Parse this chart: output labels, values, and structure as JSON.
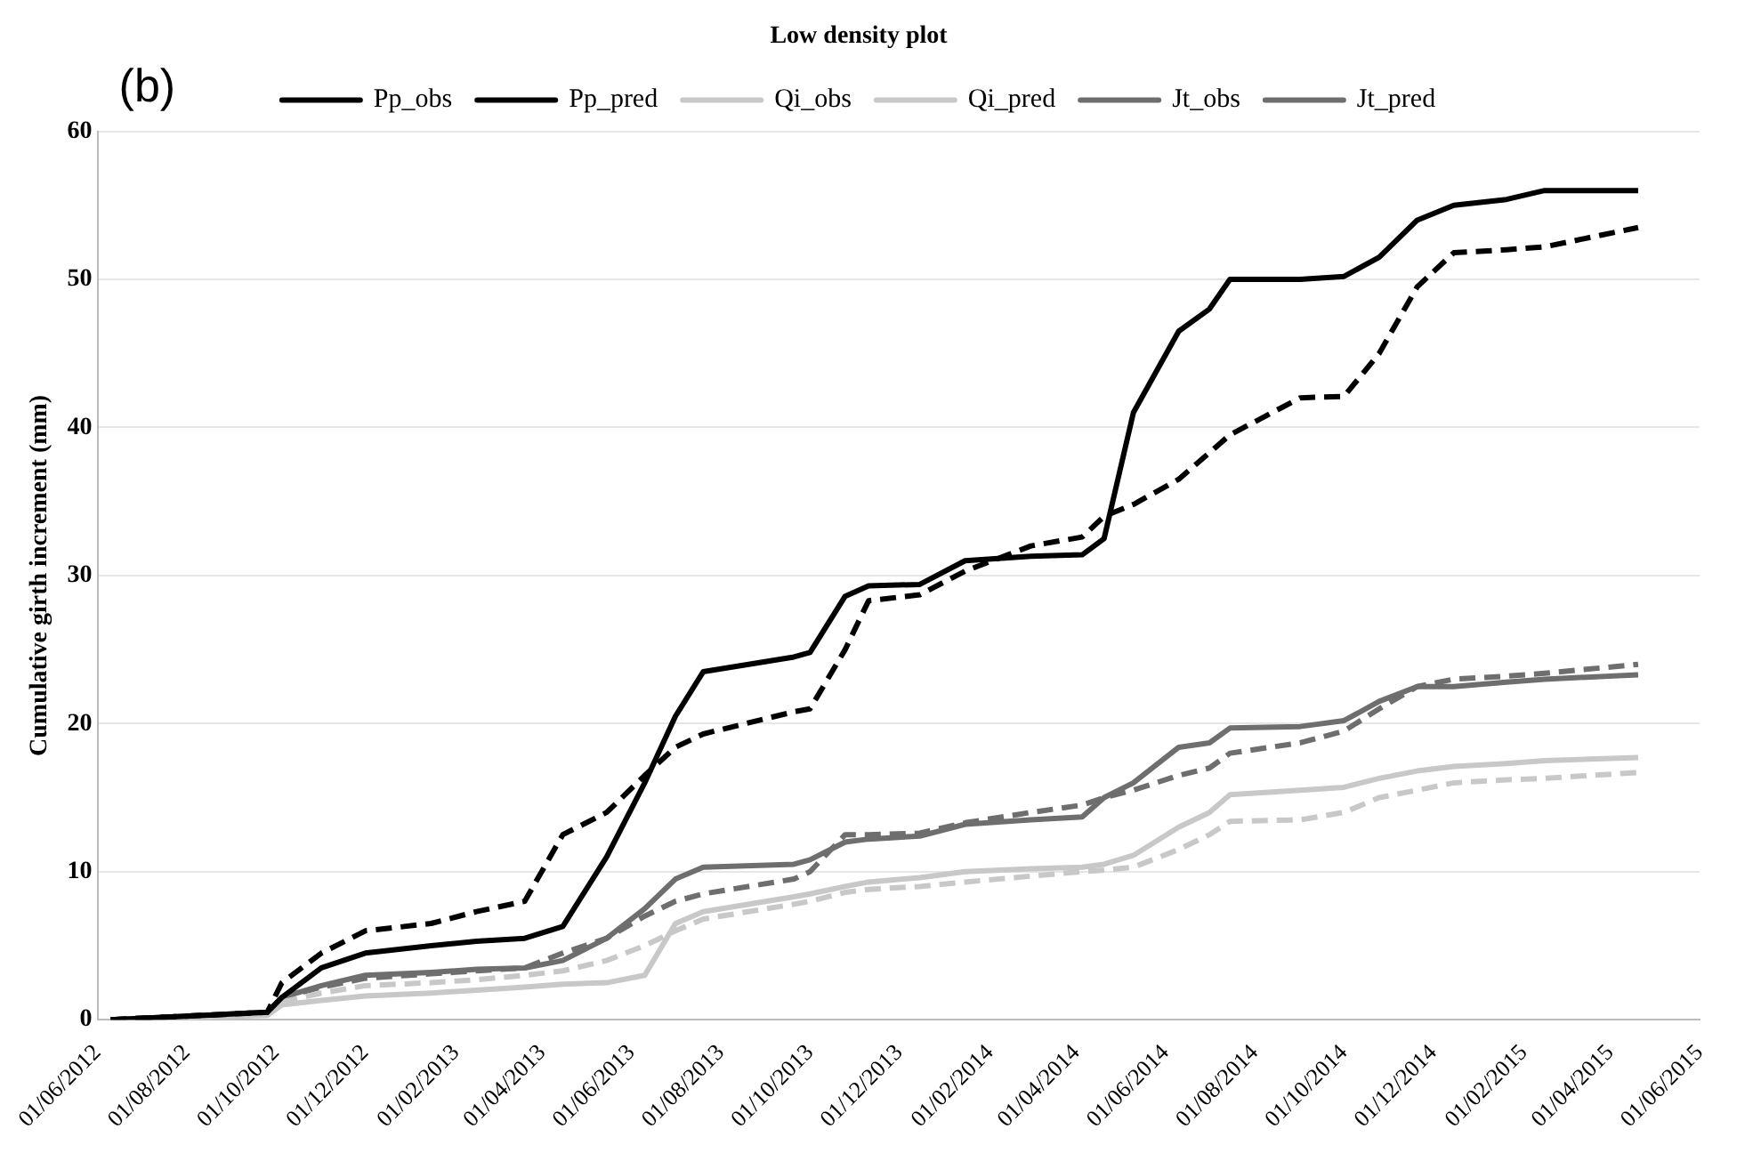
{
  "chart_data": {
    "type": "line",
    "title": "Low density plot",
    "ylabel": "Cumulative girth increment (mm)",
    "annotations": [
      "(b)"
    ],
    "x": [
      "2012-06-10",
      "2012-09-25",
      "2012-10-05",
      "2012-11-01",
      "2012-12-01",
      "2013-01-15",
      "2013-02-15",
      "2013-03-20",
      "2013-04-15",
      "2013-05-15",
      "2013-06-10",
      "2013-07-01",
      "2013-07-20",
      "2013-09-20",
      "2013-10-01",
      "2013-10-25",
      "2013-11-10",
      "2013-12-15",
      "2014-01-15",
      "2014-03-01",
      "2014-04-05",
      "2014-04-20",
      "2014-05-10",
      "2014-06-10",
      "2014-07-01",
      "2014-07-15",
      "2014-09-01",
      "2014-10-01",
      "2014-10-25",
      "2014-11-20",
      "2014-12-15",
      "2015-01-20",
      "2015-02-15",
      "2015-04-20"
    ],
    "series": [
      {
        "name": "Pp_obs",
        "color": "#000000",
        "line_style": "solid",
        "values": [
          0,
          0.5,
          1.5,
          3.5,
          4.5,
          5,
          5.3,
          5.5,
          6.3,
          11,
          16,
          20.5,
          23.5,
          24.5,
          24.8,
          28.6,
          29.3,
          29.4,
          31,
          31.3,
          31.4,
          32.5,
          41,
          46.5,
          48,
          50,
          50,
          50.2,
          51.5,
          54,
          55,
          55.4,
          56,
          56
        ]
      },
      {
        "name": "Pp_pred",
        "color": "#000000",
        "line_style": "dashed",
        "values": [
          0,
          0.5,
          2.5,
          4.5,
          6,
          6.5,
          7.3,
          8,
          12.5,
          14,
          16.5,
          18.4,
          19.3,
          20.8,
          21,
          25,
          28.3,
          28.7,
          30.3,
          32,
          32.6,
          34,
          34.8,
          36.5,
          38.3,
          39.5,
          42,
          42.1,
          45,
          49.5,
          51.8,
          52,
          52.2,
          53.5
        ]
      },
      {
        "name": "Qi_obs",
        "color": "#c8c8c8",
        "line_style": "solid",
        "values": [
          0,
          0.3,
          1,
          1.3,
          1.6,
          1.8,
          2,
          2.2,
          2.4,
          2.5,
          3,
          6.5,
          7.3,
          8.3,
          8.5,
          9,
          9.3,
          9.6,
          10,
          10.2,
          10.3,
          10.5,
          11.1,
          13,
          14,
          15.2,
          15.5,
          15.7,
          16.3,
          16.8,
          17.1,
          17.3,
          17.5,
          17.7
        ]
      },
      {
        "name": "Qi_pred",
        "color": "#c8c8c8",
        "line_style": "dashed",
        "values": [
          0,
          0.5,
          1.2,
          1.8,
          2.3,
          2.5,
          2.7,
          3,
          3.3,
          4,
          5,
          6,
          6.8,
          7.8,
          8,
          8.6,
          8.8,
          9,
          9.3,
          9.7,
          10,
          10.1,
          10.3,
          11.5,
          12.5,
          13.4,
          13.5,
          14,
          15,
          15.5,
          16,
          16.2,
          16.3,
          16.7
        ]
      },
      {
        "name": "Jt_obs",
        "color": "#6e6e6e",
        "line_style": "solid",
        "values": [
          0,
          0.5,
          1.5,
          2.3,
          3,
          3.2,
          3.4,
          3.5,
          4,
          5.5,
          7.5,
          9.5,
          10.3,
          10.5,
          10.8,
          12,
          12.2,
          12.4,
          13.2,
          13.5,
          13.7,
          15,
          16,
          18.4,
          18.7,
          19.7,
          19.8,
          20.2,
          21.5,
          22.5,
          22.5,
          22.8,
          23,
          23.3
        ]
      },
      {
        "name": "Jt_pred",
        "color": "#6e6e6e",
        "line_style": "dashed",
        "values": [
          0,
          0.5,
          1.5,
          2.2,
          2.8,
          3.1,
          3.3,
          3.5,
          4.5,
          5.5,
          7,
          8,
          8.5,
          9.5,
          10,
          12.5,
          12.5,
          12.6,
          13.3,
          14,
          14.5,
          15,
          15.5,
          16.5,
          17,
          18,
          18.7,
          19.5,
          21,
          22.5,
          23,
          23.2,
          23.4,
          24
        ]
      }
    ],
    "xlim": [
      "2012-06-01",
      "2015-06-01"
    ],
    "xticks": [
      {
        "value": "2012-06-01",
        "label": "01/06/2012"
      },
      {
        "value": "2012-08-01",
        "label": "01/08/2012"
      },
      {
        "value": "2012-10-01",
        "label": "01/10/2012"
      },
      {
        "value": "2012-12-01",
        "label": "01/12/2012"
      },
      {
        "value": "2013-02-01",
        "label": "01/02/2013"
      },
      {
        "value": "2013-04-01",
        "label": "01/04/2013"
      },
      {
        "value": "2013-06-01",
        "label": "01/06/2013"
      },
      {
        "value": "2013-08-01",
        "label": "01/08/2013"
      },
      {
        "value": "2013-10-01",
        "label": "01/10/2013"
      },
      {
        "value": "2013-12-01",
        "label": "01/12/2013"
      },
      {
        "value": "2014-02-01",
        "label": "01/02/2014"
      },
      {
        "value": "2014-04-01",
        "label": "01/04/2014"
      },
      {
        "value": "2014-06-01",
        "label": "01/06/2014"
      },
      {
        "value": "2014-08-01",
        "label": "01/08/2014"
      },
      {
        "value": "2014-10-01",
        "label": "01/10/2014"
      },
      {
        "value": "2014-12-01",
        "label": "01/12/2014"
      },
      {
        "value": "2015-02-01",
        "label": "01/02/2015"
      },
      {
        "value": "2015-04-01",
        "label": "01/04/2015"
      },
      {
        "value": "2015-06-01",
        "label": "01/06/2015"
      }
    ],
    "ylim": [
      0,
      60
    ],
    "yticks": [
      0,
      10,
      20,
      30,
      40,
      50,
      60
    ],
    "grid": "y",
    "legend": "top",
    "marker": "none"
  }
}
